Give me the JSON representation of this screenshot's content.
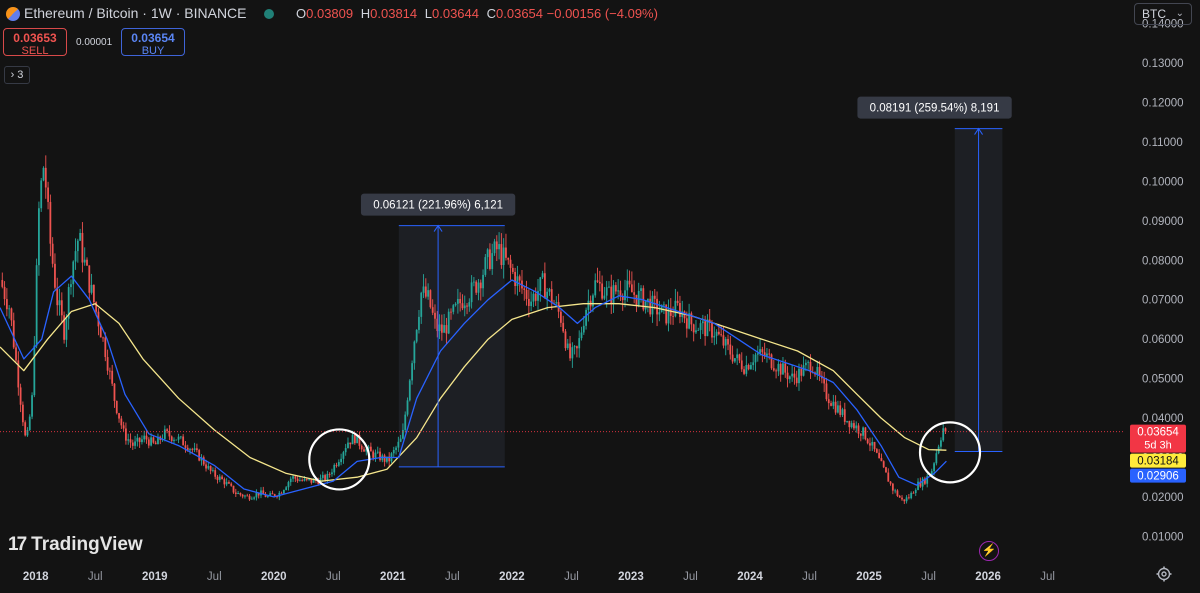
{
  "header": {
    "title": "Ethereum / Bitcoin · 1W · BINANCE",
    "ohlc": [
      {
        "k": "O",
        "v": "0.03809"
      },
      {
        "k": "H",
        "v": "0.03814"
      },
      {
        "k": "L",
        "v": "0.03644"
      },
      {
        "k": "C",
        "v": "0.03654"
      }
    ],
    "change": "−0.00156 (−4.09%)",
    "currency": "BTC"
  },
  "trade": {
    "sell_price": "0.03653",
    "sell_label": "SELL",
    "buy_price": "0.03654",
    "buy_label": "BUY",
    "spread": "0.00001"
  },
  "indicators_count": "3",
  "branding": "TradingView",
  "colors": {
    "up": "#26a69a",
    "down": "#ef5350",
    "ma_fast": "#2962ff",
    "ma_slow": "#f5e68c",
    "measure": "#2962ff",
    "background": "#131313"
  },
  "icons": [
    "settings-gear-icon",
    "lightning-icon",
    "chevron-down-icon"
  ],
  "chart_data": {
    "type": "candlestick",
    "timeframe": "1W",
    "ylim": [
      0.004,
      0.146
    ],
    "xlim": [
      2017.7,
      2027.15
    ],
    "y_ticks": [
      "0.14000",
      "0.13000",
      "0.12000",
      "0.11000",
      "0.10000",
      "0.09000",
      "0.08000",
      "0.07000",
      "0.06000",
      "0.05000",
      "0.04000",
      "0.03000",
      "0.02000",
      "0.01000"
    ],
    "y_tick_values": [
      0.14,
      0.13,
      0.12,
      0.11,
      0.1,
      0.09,
      0.08,
      0.07,
      0.06,
      0.05,
      0.04,
      0.03,
      0.02,
      0.01
    ],
    "x_ticks": [
      {
        "label": "2018",
        "t": 2018.0,
        "year": true
      },
      {
        "label": "Jul",
        "t": 2018.5,
        "year": false
      },
      {
        "label": "2019",
        "t": 2019.0,
        "year": true
      },
      {
        "label": "Jul",
        "t": 2019.5,
        "year": false
      },
      {
        "label": "2020",
        "t": 2020.0,
        "year": true
      },
      {
        "label": "Jul",
        "t": 2020.5,
        "year": false
      },
      {
        "label": "2021",
        "t": 2021.0,
        "year": true
      },
      {
        "label": "Jul",
        "t": 2021.5,
        "year": false
      },
      {
        "label": "2022",
        "t": 2022.0,
        "year": true
      },
      {
        "label": "Jul",
        "t": 2022.5,
        "year": false
      },
      {
        "label": "2023",
        "t": 2023.0,
        "year": true
      },
      {
        "label": "Jul",
        "t": 2023.5,
        "year": false
      },
      {
        "label": "2024",
        "t": 2024.0,
        "year": true
      },
      {
        "label": "Jul",
        "t": 2024.5,
        "year": false
      },
      {
        "label": "2025",
        "t": 2025.0,
        "year": true
      },
      {
        "label": "Jul",
        "t": 2025.5,
        "year": false
      },
      {
        "label": "2026",
        "t": 2026.0,
        "year": true
      },
      {
        "label": "Jul",
        "t": 2026.5,
        "year": false
      }
    ],
    "price_path": [
      [
        2017.7,
        0.075
      ],
      [
        2017.78,
        0.068
      ],
      [
        2017.86,
        0.048
      ],
      [
        2017.92,
        0.033
      ],
      [
        2017.97,
        0.045
      ],
      [
        2018.03,
        0.095
      ],
      [
        2018.07,
        0.105
      ],
      [
        2018.12,
        0.085
      ],
      [
        2018.18,
        0.07
      ],
      [
        2018.24,
        0.062
      ],
      [
        2018.3,
        0.078
      ],
      [
        2018.36,
        0.086
      ],
      [
        2018.42,
        0.078
      ],
      [
        2018.5,
        0.068
      ],
      [
        2018.58,
        0.058
      ],
      [
        2018.66,
        0.045
      ],
      [
        2018.74,
        0.036
      ],
      [
        2018.82,
        0.033
      ],
      [
        2018.92,
        0.035
      ],
      [
        2019.0,
        0.033
      ],
      [
        2019.08,
        0.036
      ],
      [
        2019.18,
        0.035
      ],
      [
        2019.28,
        0.033
      ],
      [
        2019.38,
        0.03
      ],
      [
        2019.48,
        0.026
      ],
      [
        2019.58,
        0.024
      ],
      [
        2019.68,
        0.021
      ],
      [
        2019.78,
        0.02
      ],
      [
        2019.88,
        0.021
      ],
      [
        2019.95,
        0.02
      ],
      [
        2020.05,
        0.021
      ],
      [
        2020.15,
        0.025
      ],
      [
        2020.25,
        0.024
      ],
      [
        2020.35,
        0.024
      ],
      [
        2020.45,
        0.025
      ],
      [
        2020.55,
        0.03
      ],
      [
        2020.62,
        0.034
      ],
      [
        2020.68,
        0.035
      ],
      [
        2020.74,
        0.033
      ],
      [
        2020.82,
        0.031
      ],
      [
        2020.9,
        0.03
      ],
      [
        2020.96,
        0.029
      ],
      [
        2021.02,
        0.032
      ],
      [
        2021.08,
        0.035
      ],
      [
        2021.12,
        0.045
      ],
      [
        2021.18,
        0.06
      ],
      [
        2021.24,
        0.072
      ],
      [
        2021.3,
        0.07
      ],
      [
        2021.36,
        0.063
      ],
      [
        2021.42,
        0.062
      ],
      [
        2021.5,
        0.066
      ],
      [
        2021.58,
        0.07
      ],
      [
        2021.66,
        0.072
      ],
      [
        2021.74,
        0.076
      ],
      [
        2021.8,
        0.08
      ],
      [
        2021.88,
        0.083
      ],
      [
        2021.94,
        0.08
      ],
      [
        2022.0,
        0.077
      ],
      [
        2022.08,
        0.073
      ],
      [
        2022.16,
        0.07
      ],
      [
        2022.26,
        0.074
      ],
      [
        2022.34,
        0.07
      ],
      [
        2022.42,
        0.065
      ],
      [
        2022.48,
        0.055
      ],
      [
        2022.55,
        0.057
      ],
      [
        2022.62,
        0.068
      ],
      [
        2022.7,
        0.074
      ],
      [
        2022.76,
        0.073
      ],
      [
        2022.82,
        0.071
      ],
      [
        2022.9,
        0.073
      ],
      [
        2023.0,
        0.072
      ],
      [
        2023.1,
        0.07
      ],
      [
        2023.2,
        0.068
      ],
      [
        2023.3,
        0.066
      ],
      [
        2023.4,
        0.068
      ],
      [
        2023.5,
        0.064
      ],
      [
        2023.6,
        0.063
      ],
      [
        2023.7,
        0.062
      ],
      [
        2023.8,
        0.058
      ],
      [
        2023.88,
        0.055
      ],
      [
        2023.96,
        0.053
      ],
      [
        2024.04,
        0.056
      ],
      [
        2024.12,
        0.056
      ],
      [
        2024.2,
        0.054
      ],
      [
        2024.28,
        0.052
      ],
      [
        2024.36,
        0.05
      ],
      [
        2024.44,
        0.052
      ],
      [
        2024.52,
        0.054
      ],
      [
        2024.58,
        0.05
      ],
      [
        2024.64,
        0.046
      ],
      [
        2024.72,
        0.043
      ],
      [
        2024.8,
        0.04
      ],
      [
        2024.88,
        0.038
      ],
      [
        2024.96,
        0.036
      ],
      [
        2025.04,
        0.032
      ],
      [
        2025.12,
        0.027
      ],
      [
        2025.2,
        0.022
      ],
      [
        2025.28,
        0.019
      ],
      [
        2025.34,
        0.02
      ],
      [
        2025.4,
        0.023
      ],
      [
        2025.46,
        0.024
      ],
      [
        2025.52,
        0.026
      ],
      [
        2025.58,
        0.033
      ],
      [
        2025.63,
        0.0381
      ],
      [
        2025.65,
        0.03654
      ]
    ],
    "ma_fast": [
      [
        2017.7,
        0.068
      ],
      [
        2017.9,
        0.055
      ],
      [
        2018.05,
        0.06
      ],
      [
        2018.15,
        0.072
      ],
      [
        2018.3,
        0.076
      ],
      [
        2018.45,
        0.07
      ],
      [
        2018.6,
        0.06
      ],
      [
        2018.75,
        0.046
      ],
      [
        2018.95,
        0.036
      ],
      [
        2019.2,
        0.033
      ],
      [
        2019.5,
        0.028
      ],
      [
        2019.75,
        0.022
      ],
      [
        2020.0,
        0.02
      ],
      [
        2020.25,
        0.022
      ],
      [
        2020.5,
        0.024
      ],
      [
        2020.7,
        0.029
      ],
      [
        2020.9,
        0.03
      ],
      [
        2021.05,
        0.03
      ],
      [
        2021.2,
        0.045
      ],
      [
        2021.4,
        0.057
      ],
      [
        2021.6,
        0.064
      ],
      [
        2021.8,
        0.07
      ],
      [
        2022.0,
        0.075
      ],
      [
        2022.2,
        0.072
      ],
      [
        2022.4,
        0.068
      ],
      [
        2022.55,
        0.064
      ],
      [
        2022.7,
        0.068
      ],
      [
        2022.9,
        0.071
      ],
      [
        2023.1,
        0.07
      ],
      [
        2023.4,
        0.067
      ],
      [
        2023.7,
        0.064
      ],
      [
        2023.9,
        0.06
      ],
      [
        2024.1,
        0.056
      ],
      [
        2024.3,
        0.054
      ],
      [
        2024.5,
        0.052
      ],
      [
        2024.7,
        0.049
      ],
      [
        2024.9,
        0.042
      ],
      [
        2025.1,
        0.033
      ],
      [
        2025.25,
        0.025
      ],
      [
        2025.4,
        0.023
      ],
      [
        2025.55,
        0.026
      ],
      [
        2025.65,
        0.02906
      ]
    ],
    "ma_slow": [
      [
        2017.7,
        0.058
      ],
      [
        2017.9,
        0.052
      ],
      [
        2018.1,
        0.06
      ],
      [
        2018.3,
        0.067
      ],
      [
        2018.5,
        0.069
      ],
      [
        2018.7,
        0.064
      ],
      [
        2018.9,
        0.055
      ],
      [
        2019.2,
        0.045
      ],
      [
        2019.5,
        0.037
      ],
      [
        2019.8,
        0.03
      ],
      [
        2020.1,
        0.026
      ],
      [
        2020.4,
        0.024
      ],
      [
        2020.7,
        0.025
      ],
      [
        2020.95,
        0.027
      ],
      [
        2021.2,
        0.035
      ],
      [
        2021.4,
        0.045
      ],
      [
        2021.6,
        0.053
      ],
      [
        2021.8,
        0.06
      ],
      [
        2022.0,
        0.065
      ],
      [
        2022.3,
        0.068
      ],
      [
        2022.6,
        0.069
      ],
      [
        2022.9,
        0.069
      ],
      [
        2023.2,
        0.068
      ],
      [
        2023.5,
        0.066
      ],
      [
        2023.8,
        0.063
      ],
      [
        2024.1,
        0.06
      ],
      [
        2024.4,
        0.057
      ],
      [
        2024.7,
        0.052
      ],
      [
        2024.9,
        0.046
      ],
      [
        2025.1,
        0.04
      ],
      [
        2025.3,
        0.035
      ],
      [
        2025.5,
        0.032
      ],
      [
        2025.65,
        0.03184
      ]
    ],
    "measures": [
      {
        "label": "0.06121 (221.96%) 6,121",
        "t_start": 2021.05,
        "t_end": 2021.94,
        "t_arrow": 2021.38,
        "y_base": 0.0276,
        "y_top": 0.0888
      },
      {
        "label": "0.08191 (259.54%) 8,191",
        "t_start": 2025.72,
        "t_end": 2026.12,
        "t_arrow": 2025.92,
        "y_base": 0.0315,
        "y_top": 0.1134
      }
    ],
    "circles": [
      {
        "t": 2020.55,
        "y": 0.0295
      },
      {
        "t": 2025.68,
        "y": 0.0313
      }
    ],
    "price_labels": [
      {
        "value": 0.03654,
        "text": "0.03654",
        "sub": "5d 3h",
        "bg": "#f23645",
        "fg": "#ffffff"
      },
      {
        "value": 0.03184,
        "text": "0.03184",
        "sub": "",
        "bg": "#ffeb3b",
        "fg": "#131313"
      },
      {
        "value": 0.02906,
        "text": "0.02906",
        "sub": "",
        "bg": "#2962ff",
        "fg": "#ffffff"
      }
    ],
    "current_price": 0.03654,
    "grid": false,
    "legend": "none"
  }
}
